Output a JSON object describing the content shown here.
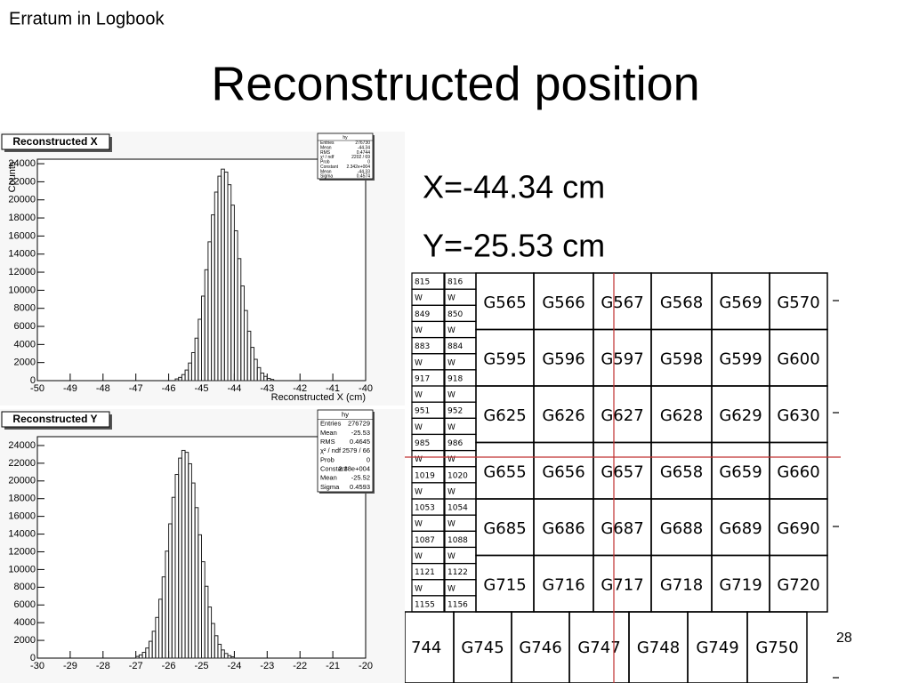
{
  "header": "Erratum in Logbook",
  "title": "Reconstructed position",
  "results": [
    "X=-44.34 cm",
    "Y=-25.53 cm"
  ],
  "page_number": "28",
  "chart_data": [
    {
      "type": "histogram",
      "title": "Reconstructed X",
      "xlabel": "Reconstructed X (cm)",
      "ylabel": "Counts",
      "bins": [
        -45.8,
        -45.7,
        -45.6,
        -45.5,
        -45.4,
        -45.3,
        -45.2,
        -45.1,
        -45.0,
        -44.9,
        -44.8,
        -44.7,
        -44.6,
        -44.5,
        -44.4,
        -44.3,
        -44.2,
        -44.1,
        -44.0,
        -43.9,
        -43.8,
        -43.7,
        -43.6,
        -43.5,
        -43.4,
        -43.3,
        -43.2,
        -43.1,
        -43.0,
        -42.9,
        -42.8
      ],
      "counts": [
        190,
        360,
        670,
        1170,
        1950,
        3100,
        4700,
        6790,
        9350,
        12270,
        15360,
        18340,
        20860,
        22620,
        23400,
        23070,
        21680,
        19420,
        16580,
        13500,
        10480,
        7760,
        5470,
        3680,
        2360,
        1440,
        840,
        470,
        250,
        130
      ],
      "color": "#222222",
      "xlim": [
        -50,
        -40
      ],
      "xticks": [
        -50,
        -49,
        -48,
        -47,
        -46,
        -45,
        -44,
        -43,
        -42,
        -41,
        -40
      ],
      "ylim": [
        0,
        24500
      ],
      "yticks": [
        0,
        2000,
        4000,
        6000,
        8000,
        10000,
        12000,
        14000,
        16000,
        18000,
        20000,
        22000,
        24000
      ],
      "stats": {
        "title": "hy",
        "rows": [
          [
            "Entries",
            "276730"
          ],
          [
            "Mean",
            "-44.34"
          ],
          [
            "RMS",
            "0.4744"
          ],
          [
            "χ² / ndf",
            "2202 / 69"
          ],
          [
            "Prob",
            "0"
          ],
          [
            "Constant",
            "2.342e+004"
          ],
          [
            "Mean",
            "-44.33"
          ],
          [
            "Sigma",
            "0.4574"
          ]
        ]
      }
    },
    {
      "type": "histogram",
      "title": "Reconstructed Y",
      "bins": [
        -27,
        -26.9,
        -26.8,
        -26.7,
        -26.6,
        -26.5,
        -26.4,
        -26.3,
        -26.2,
        -26.1,
        -26,
        -25.9,
        -25.8,
        -25.7,
        -25.6,
        -25.5,
        -25.4,
        -25.3,
        -25.2,
        -25.1,
        -25,
        -24.9,
        -24.8,
        -24.7,
        -24.6,
        -24.5,
        -24.4,
        -24.3,
        -24.2,
        -24.1,
        -24
      ],
      "counts": [
        190,
        360,
        650,
        1140,
        1900,
        3030,
        4590,
        6650,
        9170,
        12080,
        15160,
        18150,
        20730,
        22580,
        23450,
        23230,
        21940,
        19770,
        16990,
        13920,
        10880,
        8110,
        5770,
        3910,
        2530,
        1560,
        920,
        520,
        280,
        140
      ],
      "color": "#222222",
      "xlim": [
        -30,
        -20
      ],
      "xticks": [
        -30,
        -29,
        -28,
        -27,
        -26,
        -25,
        -24,
        -23,
        -22,
        -21,
        -20
      ],
      "ylim": [
        0,
        25000
      ],
      "yticks": [
        0,
        2000,
        4000,
        6000,
        8000,
        10000,
        12000,
        14000,
        16000,
        18000,
        20000,
        22000,
        24000
      ],
      "stats": {
        "title": "hy",
        "rows": [
          [
            "Entries",
            "276729"
          ],
          [
            "Mean",
            "-25.53"
          ],
          [
            "RMS",
            "0.4645"
          ],
          [
            "χ² / ndf",
            "2579 / 66"
          ],
          [
            "Prob",
            "0"
          ],
          [
            "Constant",
            "2.38e+004"
          ],
          [
            "Mean",
            "-25.52"
          ],
          [
            "Sigma",
            "0.4593"
          ]
        ]
      }
    }
  ],
  "grid": {
    "left_columns": [
      [
        "815",
        "W",
        "849",
        "W",
        "883",
        "W",
        "917",
        "W",
        "951",
        "W",
        "985",
        "W",
        "1019",
        "W",
        "1053",
        "W",
        "1087",
        "W",
        "1121",
        "W",
        "1155"
      ],
      [
        "816",
        "W",
        "850",
        "W",
        "884",
        "W",
        "918",
        "W",
        "952",
        "W",
        "986",
        "W",
        "1020",
        "W",
        "1054",
        "W",
        "1088",
        "W",
        "1122",
        "W",
        "1156"
      ]
    ],
    "rows": [
      [
        "G565",
        "G566",
        "G567",
        "G568",
        "G569",
        "G570"
      ],
      [
        "G595",
        "G596",
        "G597",
        "G598",
        "G599",
        "G600"
      ],
      [
        "G625",
        "G626",
        "G627",
        "G628",
        "G629",
        "G630"
      ],
      [
        "G655",
        "G656",
        "G657",
        "G658",
        "G659",
        "G660"
      ],
      [
        "G685",
        "G686",
        "G687",
        "G688",
        "G689",
        "G690"
      ],
      [
        "G715",
        "G716",
        "G717",
        "G718",
        "G719",
        "G720"
      ]
    ],
    "bottom_row": [
      "744",
      "G745",
      "G746",
      "G747",
      "G748",
      "G749",
      "G750"
    ]
  }
}
